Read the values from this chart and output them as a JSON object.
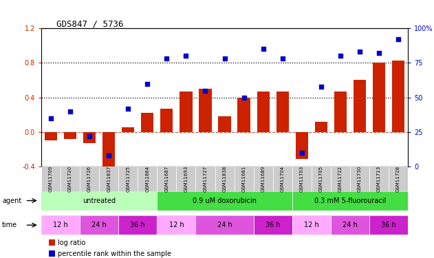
{
  "title": "GDS847 / 5736",
  "samples": [
    "GSM11709",
    "GSM11720",
    "GSM11726",
    "GSM11837",
    "GSM11725",
    "GSM11864",
    "GSM11687",
    "GSM11693",
    "GSM11727",
    "GSM11838",
    "GSM11681",
    "GSM11689",
    "GSM11704",
    "GSM11703",
    "GSM11705",
    "GSM11722",
    "GSM11730",
    "GSM11713",
    "GSM11728"
  ],
  "log_ratio": [
    -0.1,
    -0.08,
    -0.13,
    -0.46,
    0.05,
    0.22,
    0.27,
    0.47,
    0.5,
    0.18,
    0.4,
    0.47,
    0.47,
    -0.31,
    0.12,
    0.47,
    0.6,
    0.8,
    0.83
  ],
  "pct_rank": [
    35,
    40,
    22,
    8,
    42,
    60,
    78,
    80,
    55,
    78,
    50,
    85,
    78,
    10,
    58,
    80,
    83,
    82,
    92
  ],
  "ylim_left": [
    -0.4,
    1.2
  ],
  "ylim_right": [
    0,
    100
  ],
  "yticks_left": [
    -0.4,
    0.0,
    0.4,
    0.8,
    1.2
  ],
  "yticks_right": [
    0,
    25,
    50,
    75,
    100
  ],
  "ytick_labels_right": [
    "0",
    "25",
    "50",
    "75",
    "100%"
  ],
  "hlines": [
    0.4,
    0.8
  ],
  "bar_color": "#cc2200",
  "dot_color": "#0000cc",
  "zero_line_color": "#cc2200",
  "agent_groups": [
    {
      "label": "untreated",
      "start": 0,
      "end": 6,
      "color": "#bbffbb"
    },
    {
      "label": "0.9 uM doxorubicin",
      "start": 6,
      "end": 13,
      "color": "#44dd44"
    },
    {
      "label": "0.3 mM 5-fluorouracil",
      "start": 13,
      "end": 19,
      "color": "#44dd44"
    }
  ],
  "time_groups": [
    {
      "label": "12 h",
      "start": 0,
      "end": 2,
      "color": "#ffaaff"
    },
    {
      "label": "24 h",
      "start": 2,
      "end": 4,
      "color": "#dd55dd"
    },
    {
      "label": "36 h",
      "start": 4,
      "end": 6,
      "color": "#cc22cc"
    },
    {
      "label": "12 h",
      "start": 6,
      "end": 8,
      "color": "#ffaaff"
    },
    {
      "label": "24 h",
      "start": 8,
      "end": 11,
      "color": "#dd55dd"
    },
    {
      "label": "36 h",
      "start": 11,
      "end": 13,
      "color": "#cc22cc"
    },
    {
      "label": "12 h",
      "start": 13,
      "end": 15,
      "color": "#ffaaff"
    },
    {
      "label": "24 h",
      "start": 15,
      "end": 17,
      "color": "#dd55dd"
    },
    {
      "label": "36 h",
      "start": 17,
      "end": 19,
      "color": "#cc22cc"
    }
  ],
  "legend_items": [
    {
      "label": "log ratio",
      "color": "#cc2200"
    },
    {
      "label": "percentile rank within the sample",
      "color": "#0000cc"
    }
  ],
  "xtick_bgcolor": "#dddddd",
  "xtick_fontsize": 5.5,
  "bar_width": 0.65
}
